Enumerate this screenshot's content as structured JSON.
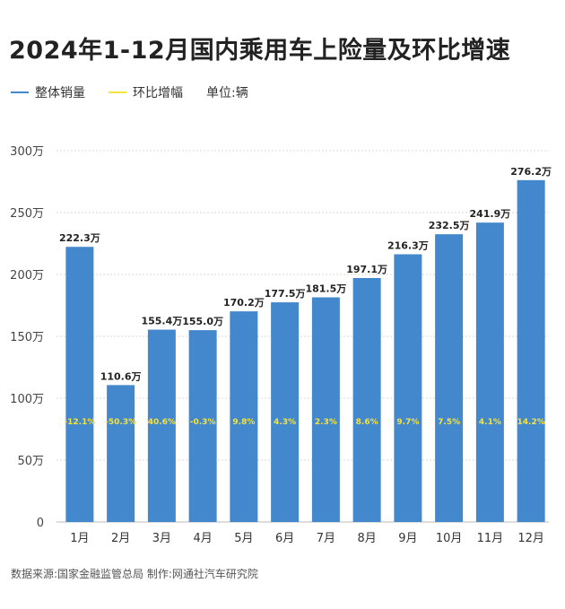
{
  "title": "2024年1-12月国内乘用车上险量及环比增速",
  "legend": {
    "items": [
      {
        "label": "整体销量",
        "color": "#4388CC"
      },
      {
        "label": "环比增幅",
        "color": "#F5E23C"
      }
    ],
    "unit": "单位:辆"
  },
  "footer": "数据来源:国家金融监管总局  制作:网通社汽车研究院",
  "chart_data": {
    "type": "bar",
    "categories": [
      "1月",
      "2月",
      "3月",
      "4月",
      "5月",
      "6月",
      "7月",
      "8月",
      "9月",
      "10月",
      "11月",
      "12月"
    ],
    "series": [
      {
        "name": "整体销量",
        "values": [
          222.3,
          110.6,
          155.4,
          155.0,
          170.2,
          177.5,
          181.5,
          197.1,
          216.3,
          232.5,
          241.9,
          276.2
        ],
        "color": "#4388CC"
      }
    ],
    "value_labels": [
      "222.3万",
      "110.6万",
      "155.4万",
      "155.0万",
      "170.2万",
      "177.5万",
      "181.5万",
      "197.1万",
      "216.3万",
      "232.5万",
      "241.9万",
      "276.2万"
    ],
    "mom_labels": [
      "-12.1%",
      "-50.3%",
      "40.6%",
      "-0.3%",
      "9.8%",
      "4.3%",
      "2.3%",
      "8.6%",
      "9.7%",
      "7.5%",
      "4.1%",
      "14.2%"
    ],
    "mom_color": "#F5E23C",
    "y_ticks": [
      "0",
      "50万",
      "100万",
      "150万",
      "200万",
      "250万",
      "300万"
    ],
    "ylim": [
      0,
      300
    ],
    "xlabel": "",
    "ylabel": "",
    "grid": true
  }
}
